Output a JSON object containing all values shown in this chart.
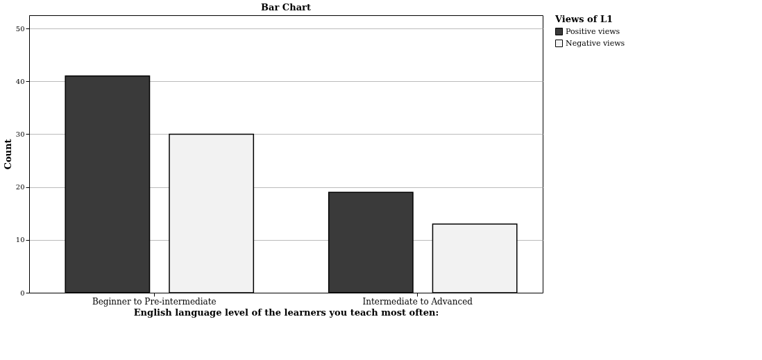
{
  "chart_data": {
    "type": "bar",
    "title": "Bar Chart",
    "xlabel": "English language level of the learners you teach most often:",
    "ylabel": "Count",
    "legend_title": "Views of L1",
    "categories": [
      "Beginner to Pre-intermediate",
      "Intermediate to Advanced"
    ],
    "series": [
      {
        "name": "Positive views",
        "color": "#3a3a3a",
        "values": [
          41,
          19
        ]
      },
      {
        "name": "Negative views",
        "color": "#f2f2f2",
        "values": [
          30,
          13
        ]
      }
    ],
    "ylim": [
      0,
      52.5
    ],
    "yticks": [
      0,
      10,
      20,
      30,
      40,
      50
    ],
    "grid": "y",
    "legend": "top right"
  }
}
